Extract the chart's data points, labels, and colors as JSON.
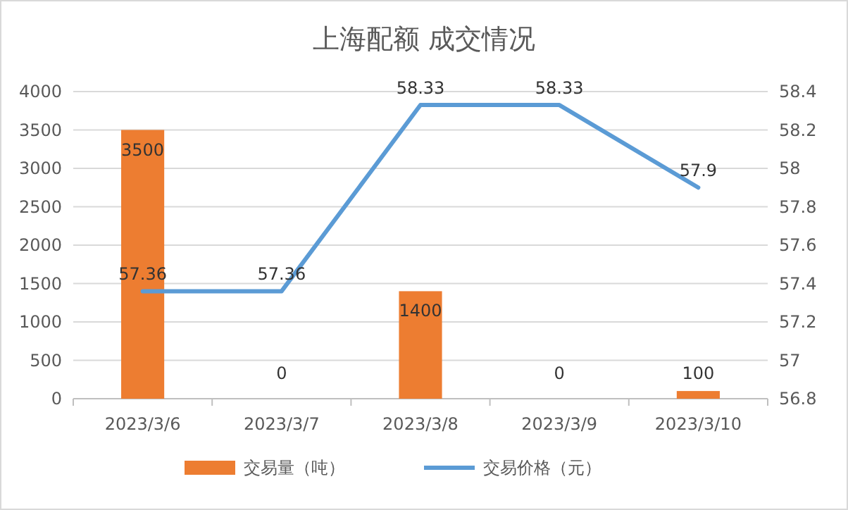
{
  "chart_data": {
    "type": "bar",
    "title": "上海配额 成交情况",
    "categories": [
      "2023/3/6",
      "2023/3/7",
      "2023/3/8",
      "2023/3/9",
      "2023/3/10"
    ],
    "series": [
      {
        "name": "交易量（吨）",
        "color": "#ed7d31",
        "values": [
          3500,
          0,
          1400,
          0,
          100
        ]
      },
      {
        "name": "交易价格（元）",
        "type": "line",
        "axis": "y2",
        "color": "#5b9bd5",
        "values": [
          57.36,
          57.36,
          58.33,
          58.33,
          57.9
        ]
      }
    ],
    "ylim": [
      0,
      4000
    ],
    "yticks": [
      0,
      500,
      1000,
      1500,
      2000,
      2500,
      3000,
      3500,
      4000
    ],
    "y2lim": [
      56.8,
      58.4
    ],
    "y2ticks": [
      56.8,
      57,
      57.2,
      57.4,
      57.6,
      57.8,
      58,
      58.2,
      58.4
    ],
    "grid": "y",
    "legend": "bottom",
    "data_labels": true,
    "marker": "none",
    "line_style": "solid"
  }
}
